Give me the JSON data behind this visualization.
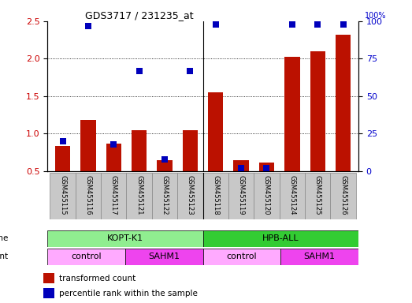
{
  "title": "GDS3717 / 231235_at",
  "samples": [
    "GSM455115",
    "GSM455116",
    "GSM455117",
    "GSM455121",
    "GSM455122",
    "GSM455123",
    "GSM455118",
    "GSM455119",
    "GSM455120",
    "GSM455124",
    "GSM455125",
    "GSM455126"
  ],
  "red_values": [
    0.84,
    1.18,
    0.87,
    1.05,
    0.65,
    1.05,
    1.55,
    0.65,
    0.62,
    2.03,
    2.1,
    2.32
  ],
  "blue_percentiles": [
    20,
    97,
    18,
    67,
    8,
    67,
    98,
    2,
    2,
    98,
    98,
    98
  ],
  "ylim_left": [
    0.5,
    2.5
  ],
  "ylim_right": [
    0,
    100
  ],
  "yticks_left": [
    0.5,
    1.0,
    1.5,
    2.0,
    2.5
  ],
  "yticks_right_vals": [
    0,
    25,
    50,
    75,
    100
  ],
  "yticks_right_labels": [
    "0",
    "25",
    "50",
    "75",
    "100"
  ],
  "cell_line_groups": [
    {
      "label": "KOPT-K1",
      "start": 0,
      "end": 6,
      "color": "#90EE90"
    },
    {
      "label": "HPB-ALL",
      "start": 6,
      "end": 12,
      "color": "#33CC33"
    }
  ],
  "agent_groups": [
    {
      "label": "control",
      "start": 0,
      "end": 3,
      "color": "#FFAAFF"
    },
    {
      "label": "SAHM1",
      "start": 3,
      "end": 6,
      "color": "#EE44EE"
    },
    {
      "label": "control",
      "start": 6,
      "end": 9,
      "color": "#FFAAFF"
    },
    {
      "label": "SAHM1",
      "start": 9,
      "end": 12,
      "color": "#EE44EE"
    }
  ],
  "red_color": "#BB1100",
  "blue_color": "#0000BB",
  "bar_width": 0.6,
  "baseline": 0.5,
  "blue_marker_size": 6,
  "separator_positions": [
    5.5
  ],
  "left_label_color": "#CC0000",
  "right_label_color": "#0000CC"
}
